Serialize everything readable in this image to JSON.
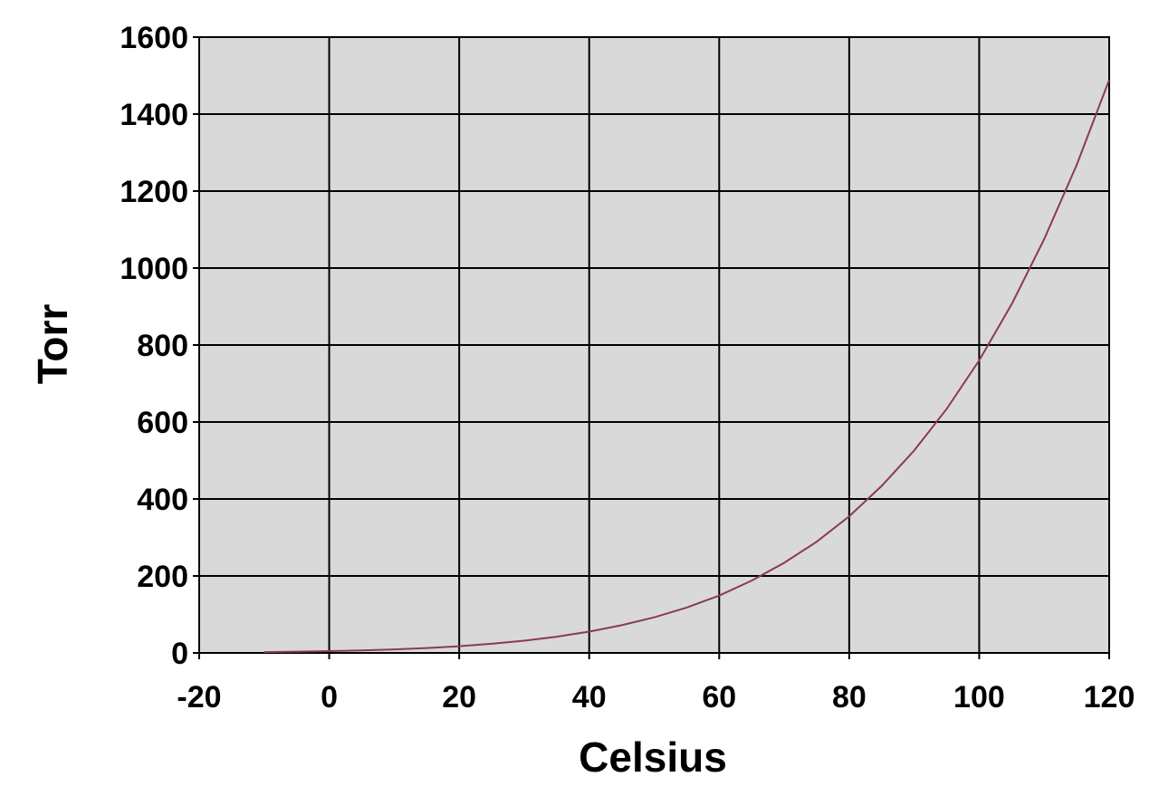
{
  "chart_data": {
    "type": "line",
    "title": "",
    "xlabel": "Celsius",
    "ylabel": "Torr",
    "xlim": [
      -20,
      120
    ],
    "ylim": [
      0,
      1600
    ],
    "xticks": [
      -20,
      0,
      20,
      40,
      60,
      80,
      100,
      120
    ],
    "yticks": [
      0,
      200,
      400,
      600,
      800,
      1000,
      1200,
      1400,
      1600
    ],
    "grid": true,
    "legend": "none",
    "colors": {
      "plot_background": "#d9d9d9",
      "grid": "#000000",
      "line": "#8b3a52"
    },
    "series": [
      {
        "x": [
          -10,
          -5,
          0,
          5,
          10,
          15,
          20,
          25,
          30,
          35,
          40,
          45,
          50,
          55,
          60,
          65,
          70,
          75,
          80,
          85,
          90,
          95,
          100,
          105,
          110,
          115,
          120
        ],
        "y": [
          2.1,
          3.2,
          4.6,
          6.5,
          9.2,
          12.8,
          17.5,
          23.8,
          31.8,
          42.2,
          55.3,
          71.9,
          92.5,
          118,
          149,
          188,
          234,
          289,
          355,
          434,
          526,
          634,
          760,
          906,
          1075,
          1268,
          1489
        ]
      }
    ]
  }
}
